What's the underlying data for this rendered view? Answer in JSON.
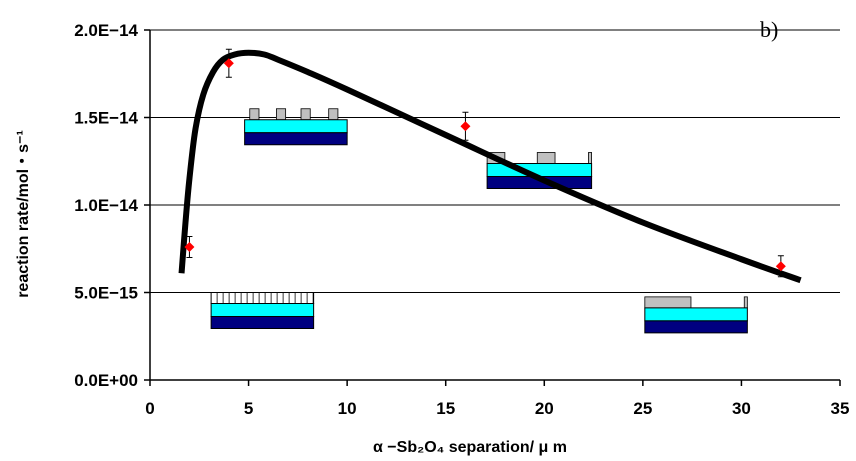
{
  "chart_data": {
    "type": "line",
    "panel_label": "b)",
    "xlabel": "α −Sb₂O₄ separation/ μ m",
    "ylabel": "reaction rate/mol・s⁻¹",
    "xlim": [
      0,
      35
    ],
    "ylim": [
      0,
      2e-14
    ],
    "x_ticks": [
      "0",
      "5",
      "10",
      "15",
      "20",
      "25",
      "30",
      "35"
    ],
    "y_ticks": [
      "0.0E+00",
      "5.0E−15",
      "1.0E−14",
      "1.5E−14",
      "2.0E−14"
    ],
    "grid": "horizontal",
    "series": [
      {
        "kind": "points",
        "x": [
          2,
          4,
          16,
          32
        ],
        "y": [
          7.6e-15,
          1.81e-14,
          1.45e-14,
          6.5e-15
        ],
        "err": [
          6e-16,
          8e-16,
          8e-16,
          6e-16
        ],
        "color": "#ff0000"
      },
      {
        "kind": "fit",
        "x": [
          1.6,
          1.8,
          2.0,
          2.3,
          2.7,
          3.2,
          3.7,
          4.3,
          5.0,
          5.8,
          6.5,
          8,
          10,
          15,
          20,
          25,
          30,
          33
        ],
        "y": [
          6.1e-15,
          9e-15,
          1.15e-14,
          1.43e-14,
          1.63e-14,
          1.76e-14,
          1.83e-14,
          1.86e-14,
          1.87e-14,
          1.86e-14,
          1.83e-14,
          1.76e-14,
          1.66e-14,
          1.4e-14,
          1.14e-14,
          9e-15,
          6.9e-15,
          5.7e-15
        ],
        "color": "#000000"
      }
    ],
    "insets": [
      {
        "name": "dense-fine-array",
        "x": 3.1,
        "y": 5e-15,
        "w": 5.2,
        "pattern": "dense"
      },
      {
        "name": "4um-array",
        "x": 4.8,
        "y": 1.55e-14,
        "w": 5.2,
        "pattern": "medium"
      },
      {
        "name": "16um-array",
        "x": 17.1,
        "y": 1.3e-14,
        "w": 5.3,
        "pattern": "sparse"
      },
      {
        "name": "32um-array",
        "x": 25.1,
        "y": 4.75e-15,
        "w": 5.2,
        "pattern": "single"
      }
    ],
    "colors": {
      "grid": "#000000",
      "top_layer": "#00ffff",
      "bottom_layer": "#000080",
      "bump": "#c0c0c0",
      "point": "#ff0000",
      "fit": "#000000"
    }
  }
}
